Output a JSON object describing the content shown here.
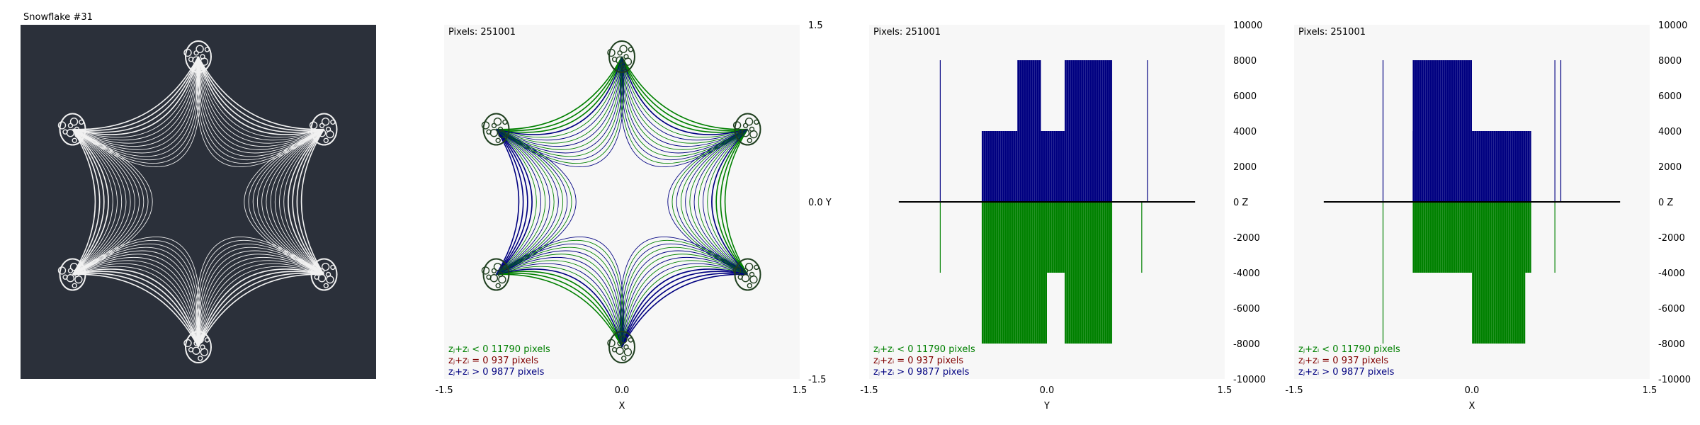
{
  "panel1": {
    "title": "Snowflake #31",
    "bg": "#2b303a",
    "fg": "#f1f1f1"
  },
  "colors": {
    "green": "#008000",
    "navy": "#000080",
    "maroon": "#800000",
    "plot_bg": "#f7f7f7"
  },
  "legend": [
    {
      "label": "zⱼ+zᵢ < 0",
      "count": "11790 pixels",
      "color": "#008000"
    },
    {
      "label": "zⱼ+zᵢ = 0",
      "count": "937 pixels",
      "color": "#800000"
    },
    {
      "label": "zⱼ+zᵢ > 0",
      "count": "9877 pixels",
      "color": "#000080"
    }
  ],
  "chart_data": [
    {
      "type": "scatter",
      "name": "xy-projection",
      "pixels_label": "Pixels: 251001",
      "xlabel": "X",
      "ylabel": "Y",
      "xlim": [
        -1.5,
        1.5
      ],
      "ylim": [
        -1.5,
        1.5
      ],
      "xticks": [
        "-1.5",
        "0.0",
        "1.5"
      ],
      "yticks": [
        "1.5",
        "0.0 Y",
        "-1.5"
      ],
      "grid": false
    },
    {
      "type": "bar",
      "name": "yz-projection",
      "pixels_label": "Pixels: 251001",
      "xlabel": "Y",
      "ylabel": "Z",
      "xlim": [
        -1.5,
        1.5
      ],
      "ylim": [
        -10000,
        10000
      ],
      "xticks": [
        "-1.5",
        "0.0",
        "1.5"
      ],
      "yticks": [
        "10000",
        "8000",
        "6000",
        "4000",
        "2000",
        "0   Z",
        "-2000",
        "-4000",
        "-6000",
        "-8000",
        "-10000"
      ],
      "pos_blocks": [
        [
          -0.55,
          0.55,
          4000
        ],
        [
          -0.25,
          -0.05,
          8000
        ],
        [
          0.15,
          0.55,
          8000
        ]
      ],
      "neg_blocks": [
        [
          -0.55,
          0.55,
          -4000
        ],
        [
          -0.55,
          0.0,
          -8000
        ],
        [
          0.15,
          0.55,
          -8000
        ]
      ],
      "pos_spikes": [
        [
          -0.9,
          8000
        ],
        [
          0.85,
          8000
        ]
      ],
      "neg_spikes": [
        [
          -0.9,
          -4000
        ],
        [
          0.8,
          -4000
        ]
      ],
      "baseline": [
        -1.25,
        1.25
      ],
      "grid": false
    },
    {
      "type": "bar",
      "name": "xz-projection",
      "pixels_label": "Pixels: 251001",
      "xlabel": "X",
      "ylabel": "Z",
      "xlim": [
        -1.5,
        1.5
      ],
      "ylim": [
        -10000,
        10000
      ],
      "xticks": [
        "-1.5",
        "0.0",
        "1.5"
      ],
      "yticks": [
        "10000",
        "8000",
        "6000",
        "4000",
        "2000",
        "0   Z",
        "-2000",
        "-4000",
        "-6000",
        "-8000",
        "-10000"
      ],
      "pos_blocks": [
        [
          -0.5,
          0.5,
          4000
        ],
        [
          -0.5,
          0.0,
          8000
        ]
      ],
      "neg_blocks": [
        [
          -0.5,
          0.5,
          -4000
        ],
        [
          0.0,
          0.45,
          -8000
        ]
      ],
      "pos_spikes": [
        [
          -0.75,
          8000
        ],
        [
          0.7,
          8000
        ],
        [
          0.75,
          8000
        ]
      ],
      "neg_spikes": [
        [
          -0.75,
          -8000
        ],
        [
          0.7,
          -4000
        ]
      ],
      "baseline": [
        -1.25,
        1.25
      ],
      "grid": false
    }
  ]
}
